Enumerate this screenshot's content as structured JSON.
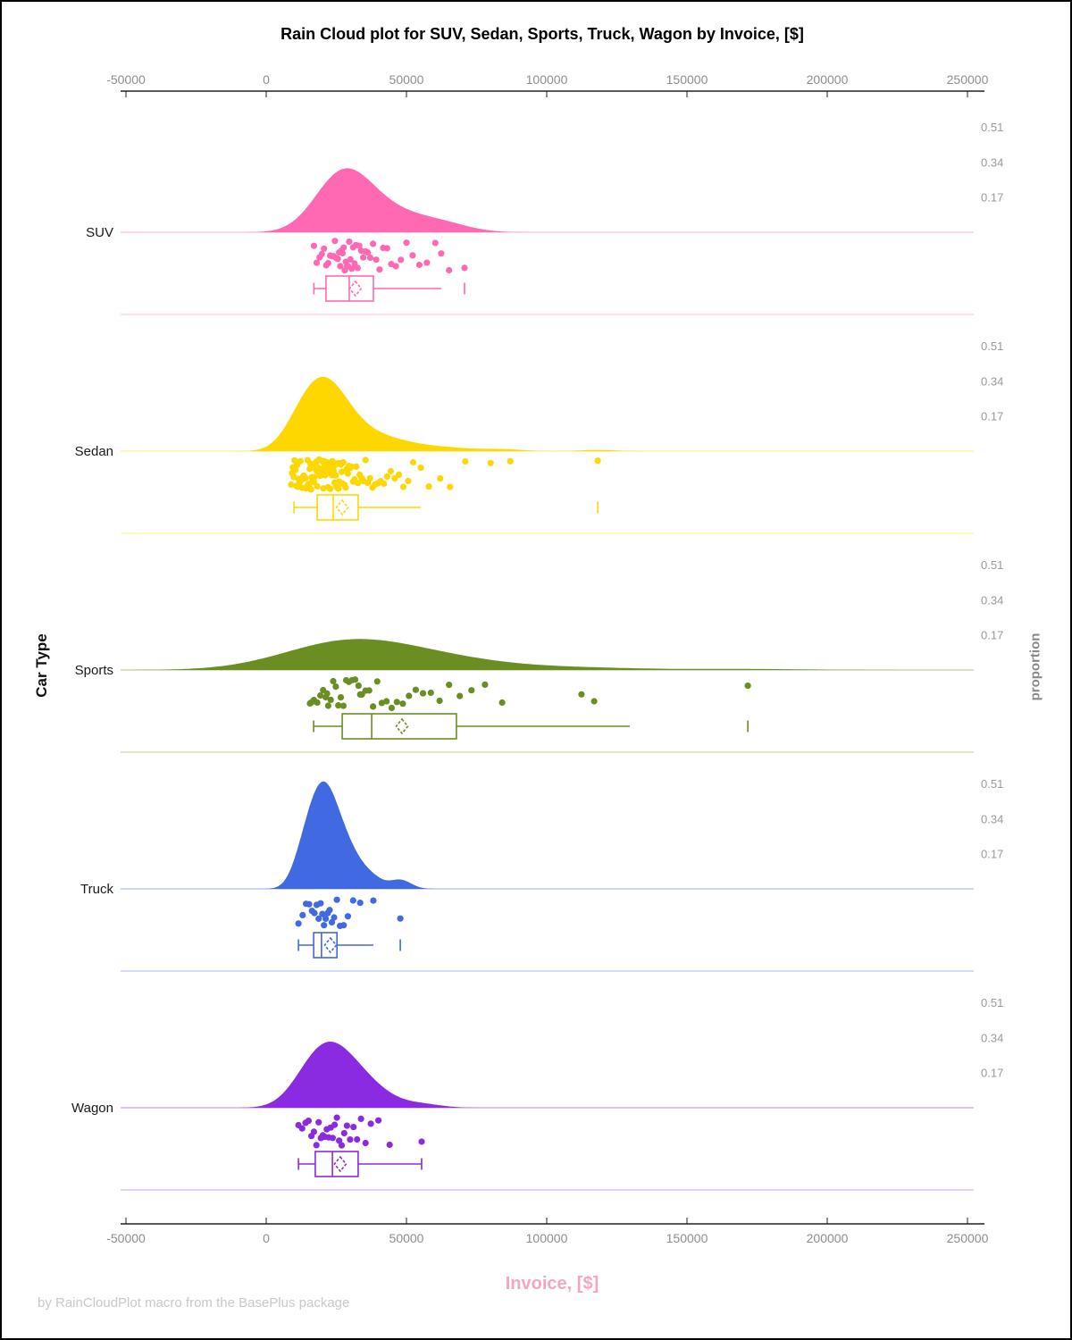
{
  "title": "Rain Cloud plot for SUV, Sedan, Sports, Truck, Wagon by Invoice, [$]",
  "footer": "by RainCloudPlot macro from the BasePlus package",
  "x_axis": {
    "label": "Invoice, [$]",
    "label_color": "#f5a6bf"
  },
  "y_axis": {
    "label": "Car Type"
  },
  "right_axis": {
    "label": "proportion"
  },
  "chart_data": {
    "type": "raincloud",
    "title": "Rain Cloud plot for SUV, Sedan, Sports, Truck, Wagon by Invoice, [$]",
    "xlabel": "Invoice, [$]",
    "ylabel": "Car Type",
    "right_axis_label": "proportion",
    "grid": false,
    "legend": false,
    "x_range": [
      -52000,
      256000
    ],
    "x_ticks": [
      -50000,
      0,
      50000,
      100000,
      150000,
      200000,
      250000
    ],
    "proportion_ticks": [
      0.17,
      0.34,
      0.51
    ],
    "categories": [
      "SUV",
      "Sedan",
      "Sports",
      "Truck",
      "Wagon"
    ],
    "series": [
      {
        "name": "SUV",
        "color": "#FF69B4",
        "density": {
          "bandwidth": 8000,
          "peak_proportion": 0.31
        },
        "box": {
          "whisker_low": 17000,
          "q1": 21300,
          "median": 29600,
          "mean": 31800,
          "q3": 38200,
          "whisker_high": 62400,
          "right_cap": false,
          "outliers": [
            70700
          ]
        },
        "points": [
          17000,
          18000,
          19000,
          19800,
          20600,
          21400,
          22100,
          22800,
          23400,
          24000,
          24500,
          25000,
          25500,
          26000,
          26400,
          26800,
          27200,
          27600,
          28000,
          28400,
          28800,
          29200,
          29600,
          30000,
          30500,
          31000,
          31500,
          32000,
          32600,
          33200,
          33900,
          34600,
          35400,
          36200,
          37100,
          38100,
          39200,
          40400,
          41700,
          43100,
          44600,
          46200,
          48000,
          50000,
          52200,
          54600,
          57300,
          60300,
          62400,
          65200,
          70700
        ]
      },
      {
        "name": "Sedan",
        "color": "#FFD700",
        "density": {
          "bandwidth": 6000,
          "peak_proportion": 0.36
        },
        "box": {
          "whisker_low": 9900,
          "q1": 18200,
          "median": 23900,
          "mean": 27100,
          "q3": 32800,
          "whisker_high": 55100,
          "right_cap": false,
          "outliers": [
            118200
          ]
        },
        "points": [
          8900,
          9200,
          9500,
          9800,
          10100,
          10400,
          10700,
          11000,
          11300,
          11600,
          11900,
          12200,
          12500,
          12800,
          13100,
          13400,
          13700,
          14000,
          14250,
          14500,
          14750,
          15000,
          15250,
          15500,
          15750,
          16000,
          16250,
          16500,
          16750,
          17000,
          17200,
          17400,
          17600,
          17800,
          18000,
          18200,
          18400,
          18600,
          18800,
          19000,
          19200,
          19400,
          19600,
          19800,
          20000,
          20200,
          20400,
          20600,
          20800,
          21000,
          21200,
          21400,
          21600,
          21800,
          22000,
          22200,
          22400,
          22600,
          22800,
          23000,
          23200,
          23400,
          23600,
          23800,
          24000,
          24200,
          24400,
          24600,
          24800,
          25000,
          25250,
          25500,
          25750,
          26000,
          26300,
          26600,
          26900,
          27200,
          27500,
          27900,
          28300,
          28700,
          29100,
          29500,
          30000,
          30500,
          31000,
          31500,
          32100,
          32700,
          33300,
          34000,
          34700,
          35400,
          36200,
          37000,
          37900,
          38800,
          39800,
          40800,
          41900,
          43100,
          44400,
          45800,
          47300,
          48900,
          50600,
          52400,
          55100,
          58000,
          62000,
          65500,
          71000,
          80000,
          87000,
          118200
        ]
      },
      {
        "name": "Sports",
        "color": "#6B8E23",
        "density": {
          "bandwidth": 21000,
          "peak_proportion": 0.15
        },
        "box": {
          "whisker_low": 16900,
          "q1": 27100,
          "median": 37600,
          "mean": 48400,
          "q3": 67800,
          "whisker_high": 129600,
          "right_cap": false,
          "outliers": [
            171700
          ]
        },
        "points": [
          15600,
          16200,
          17000,
          18200,
          19300,
          20300,
          21200,
          21700,
          22100,
          23000,
          23900,
          24800,
          25700,
          26600,
          27500,
          28500,
          29500,
          30600,
          31700,
          32900,
          33500,
          34100,
          35400,
          36700,
          38100,
          39600,
          41200,
          42900,
          44700,
          46600,
          48700,
          50900,
          53300,
          55900,
          58700,
          61800,
          65200,
          69000,
          73200,
          78000,
          84100,
          112400,
          116900,
          171700
        ]
      },
      {
        "name": "Truck",
        "color": "#4169E1",
        "density": {
          "bandwidth": 3800,
          "peak_proportion": 0.52
        },
        "box": {
          "whisker_low": 11500,
          "q1": 16900,
          "median": 19700,
          "mean": 22900,
          "q3": 25200,
          "whisker_high": 38200,
          "right_cap": false,
          "outliers": [
            47800
          ]
        },
        "points": [
          11500,
          13000,
          14200,
          15300,
          16300,
          17200,
          18000,
          18700,
          19400,
          20000,
          20600,
          21200,
          21900,
          22600,
          23400,
          24200,
          25200,
          26300,
          27600,
          29100,
          31000,
          33500,
          38200,
          47800
        ]
      },
      {
        "name": "Wagon",
        "color": "#8A2BE2",
        "density": {
          "bandwidth": 7000,
          "peak_proportion": 0.32
        },
        "box": {
          "whisker_low": 11500,
          "q1": 17500,
          "median": 23600,
          "mean": 26400,
          "q3": 32800,
          "whisker_high": 55400,
          "right_cap": true,
          "outliers": []
        },
        "points": [
          11500,
          12800,
          14000,
          15100,
          16100,
          17000,
          17900,
          18700,
          19500,
          20200,
          20900,
          21600,
          22300,
          23000,
          23700,
          24400,
          25200,
          26000,
          26900,
          27800,
          28800,
          29900,
          31100,
          32400,
          33800,
          35400,
          37300,
          40000,
          44000,
          55400
        ]
      }
    ]
  }
}
